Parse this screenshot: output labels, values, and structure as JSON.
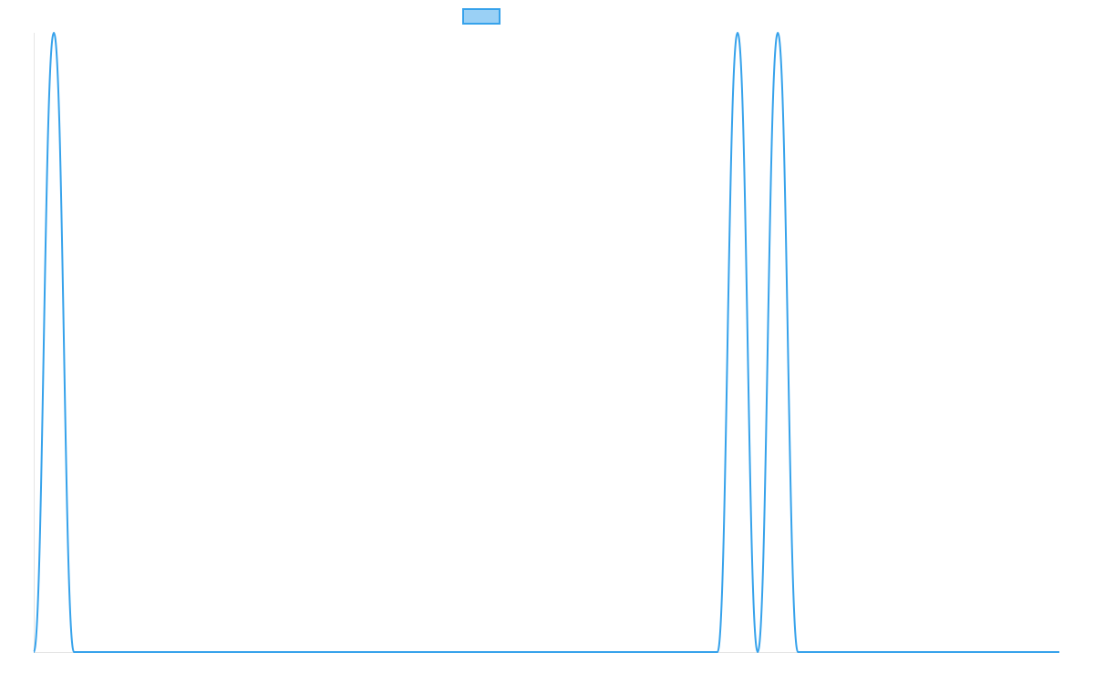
{
  "chart_data": {
    "type": "line",
    "categories": [
      null,
      null,
      null,
      null,
      null,
      null,
      null,
      null,
      null,
      null,
      null,
      null,
      null,
      null,
      null,
      null,
      null,
      null,
      null,
      null,
      null,
      null,
      null,
      null,
      null,
      null,
      null,
      null,
      null,
      null,
      null,
      null,
      null,
      null,
      null,
      null,
      null,
      null,
      null,
      null,
      null,
      null,
      null,
      null,
      null,
      null,
      null,
      null,
      null,
      null,
      null,
      null
    ],
    "series": [
      {
        "color": "#36a2eb",
        "fill": "#9ad0f5",
        "values": [
          0,
          1,
          0,
          0,
          0,
          0,
          0,
          0,
          0,
          0,
          0,
          0,
          0,
          0,
          0,
          0,
          0,
          0,
          0,
          0,
          0,
          0,
          0,
          0,
          0,
          0,
          0,
          0,
          0,
          0,
          0,
          0,
          0,
          0,
          0,
          1,
          0,
          1,
          0,
          0,
          0,
          0,
          0,
          0,
          0,
          0,
          0,
          0,
          0,
          0,
          0,
          0
        ]
      }
    ],
    "ylim": [
      0,
      1
    ],
    "legend": "top"
  }
}
